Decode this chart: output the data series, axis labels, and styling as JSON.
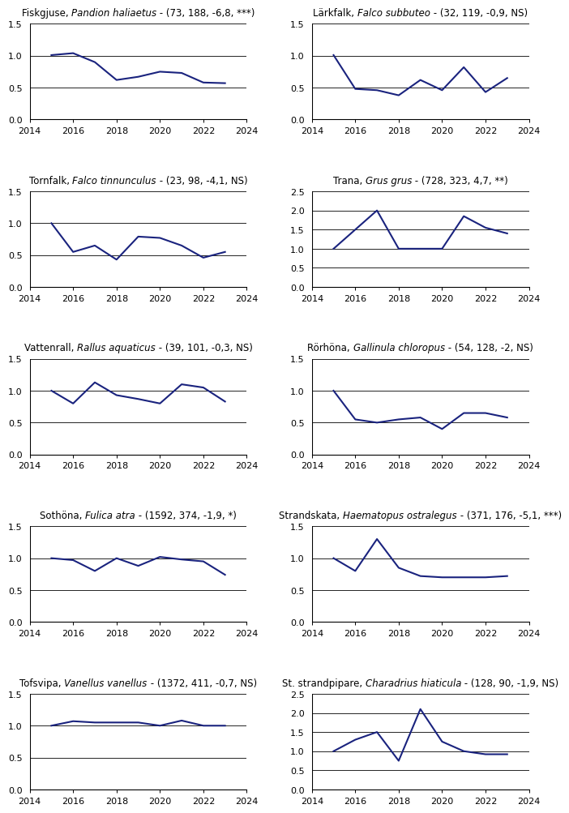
{
  "plots": [
    {
      "title_normal": "Fiskgjuse, ",
      "title_italic": "Pandion haliaetus",
      "title_suffix": " - (73, 188, -6,8, ***)",
      "years": [
        2015,
        2016,
        2017,
        2018,
        2019,
        2020,
        2021,
        2022,
        2023
      ],
      "values": [
        1.01,
        1.04,
        0.9,
        0.62,
        0.67,
        0.75,
        0.73,
        0.58,
        0.57
      ],
      "ylim": [
        0.0,
        1.5
      ],
      "yticks": [
        0.0,
        0.5,
        1.0,
        1.5
      ],
      "hlines": [
        0.5,
        1.0,
        1.5
      ]
    },
    {
      "title_normal": "Lärkfalk, ",
      "title_italic": "Falco subbuteo",
      "title_suffix": " - (32, 119, -0,9, NS)",
      "years": [
        2015,
        2016,
        2017,
        2018,
        2019,
        2020,
        2021,
        2022,
        2023
      ],
      "values": [
        1.01,
        0.48,
        0.46,
        0.38,
        0.62,
        0.46,
        0.82,
        0.43,
        0.65
      ],
      "ylim": [
        0.0,
        1.5
      ],
      "yticks": [
        0.0,
        0.5,
        1.0,
        1.5
      ],
      "hlines": [
        0.5,
        1.0,
        1.5
      ]
    },
    {
      "title_normal": "Tornfalk, ",
      "title_italic": "Falco tinnunculus",
      "title_suffix": " - (23, 98, -4,1, NS)",
      "years": [
        2015,
        2016,
        2017,
        2018,
        2019,
        2020,
        2021,
        2022,
        2023
      ],
      "values": [
        1.0,
        0.55,
        0.65,
        0.43,
        0.79,
        0.77,
        0.65,
        0.46,
        0.55
      ],
      "ylim": [
        0.0,
        1.5
      ],
      "yticks": [
        0.0,
        0.5,
        1.0,
        1.5
      ],
      "hlines": [
        0.5,
        1.0,
        1.5
      ]
    },
    {
      "title_normal": "Trana, ",
      "title_italic": "Grus grus",
      "title_suffix": " - (728, 323, 4,7, **)",
      "years": [
        2015,
        2016,
        2017,
        2018,
        2019,
        2020,
        2021,
        2022,
        2023
      ],
      "values": [
        1.0,
        1.5,
        2.0,
        1.0,
        1.0,
        1.0,
        1.85,
        1.55,
        1.4
      ],
      "ylim": [
        0.0,
        2.5
      ],
      "yticks": [
        0.0,
        0.5,
        1.0,
        1.5,
        2.0,
        2.5
      ],
      "hlines": [
        0.5,
        1.0,
        1.5,
        2.0,
        2.5
      ]
    },
    {
      "title_normal": "Vattenrall, ",
      "title_italic": "Rallus aquaticus",
      "title_suffix": " - (39, 101, -0,3, NS)",
      "years": [
        2015,
        2016,
        2017,
        2018,
        2019,
        2020,
        2021,
        2022,
        2023
      ],
      "values": [
        1.0,
        0.8,
        1.13,
        0.93,
        0.87,
        0.8,
        1.1,
        1.05,
        0.83
      ],
      "ylim": [
        0.0,
        1.5
      ],
      "yticks": [
        0.0,
        0.5,
        1.0,
        1.5
      ],
      "hlines": [
        0.5,
        1.0,
        1.5
      ]
    },
    {
      "title_normal": "Rörhöna, ",
      "title_italic": "Gallinula chloropus",
      "title_suffix": " - (54, 128, -2, NS)",
      "years": [
        2015,
        2016,
        2017,
        2018,
        2019,
        2020,
        2021,
        2022,
        2023
      ],
      "values": [
        1.0,
        0.55,
        0.5,
        0.55,
        0.58,
        0.4,
        0.65,
        0.65,
        0.58
      ],
      "ylim": [
        0.0,
        1.5
      ],
      "yticks": [
        0.0,
        0.5,
        1.0,
        1.5
      ],
      "hlines": [
        0.5,
        1.0,
        1.5
      ]
    },
    {
      "title_normal": "Sothöna, ",
      "title_italic": "Fulica atra",
      "title_suffix": " - (1592, 374, -1,9, *)",
      "years": [
        2015,
        2016,
        2017,
        2018,
        2019,
        2020,
        2021,
        2022,
        2023
      ],
      "values": [
        1.0,
        0.97,
        0.8,
        1.0,
        0.88,
        1.02,
        0.98,
        0.95,
        0.74
      ],
      "ylim": [
        0.0,
        1.5
      ],
      "yticks": [
        0.0,
        0.5,
        1.0,
        1.5
      ],
      "hlines": [
        0.5,
        1.0,
        1.5
      ]
    },
    {
      "title_normal": "Strandskata, ",
      "title_italic": "Haematopus ostralegus",
      "title_suffix": " - (371, 176, -5,1, ***)",
      "years": [
        2015,
        2016,
        2017,
        2018,
        2019,
        2020,
        2021,
        2022,
        2023
      ],
      "values": [
        1.0,
        0.8,
        1.3,
        0.85,
        0.72,
        0.7,
        0.7,
        0.7,
        0.72
      ],
      "ylim": [
        0.0,
        1.5
      ],
      "yticks": [
        0.0,
        0.5,
        1.0,
        1.5
      ],
      "hlines": [
        0.5,
        1.0,
        1.5
      ]
    },
    {
      "title_normal": "Tofsvipa, ",
      "title_italic": "Vanellus vanellus",
      "title_suffix": " - (1372, 411, -0,7, NS)",
      "years": [
        2015,
        2016,
        2017,
        2018,
        2019,
        2020,
        2021,
        2022,
        2023
      ],
      "values": [
        1.0,
        1.07,
        1.05,
        1.05,
        1.05,
        1.0,
        1.08,
        1.0,
        1.0
      ],
      "ylim": [
        0.0,
        1.5
      ],
      "yticks": [
        0.0,
        0.5,
        1.0,
        1.5
      ],
      "hlines": [
        0.5,
        1.0,
        1.5
      ]
    },
    {
      "title_normal": "St. strandpipare, ",
      "title_italic": "Charadrius hiaticula",
      "title_suffix": " - (128, 90, -1,9, NS)",
      "years": [
        2015,
        2016,
        2017,
        2018,
        2019,
        2020,
        2021,
        2022,
        2023
      ],
      "values": [
        1.0,
        1.3,
        1.5,
        0.75,
        2.1,
        1.25,
        1.0,
        0.92,
        0.92
      ],
      "ylim": [
        0.0,
        2.5
      ],
      "yticks": [
        0.0,
        0.5,
        1.0,
        1.5,
        2.0,
        2.5
      ],
      "hlines": [
        0.5,
        1.0,
        1.5,
        2.0,
        2.5
      ]
    }
  ],
  "line_color": "#1a237e",
  "line_width": 1.5,
  "xlim": [
    2014,
    2024
  ],
  "xticks": [
    2014,
    2016,
    2018,
    2020,
    2022,
    2024
  ],
  "background_color": "#ffffff",
  "grid_color": "#000000",
  "title_fontsize": 8.5,
  "tick_fontsize": 8
}
